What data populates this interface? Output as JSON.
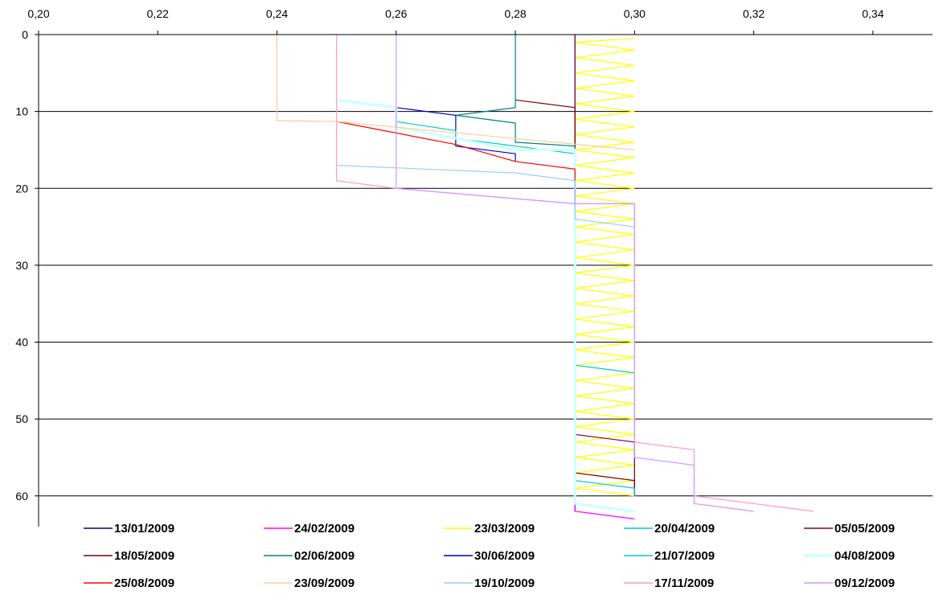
{
  "chart_data": {
    "type": "line",
    "title": "",
    "xlabel": "",
    "ylabel": "",
    "xlim": [
      0.2,
      0.35
    ],
    "ylim": [
      0,
      64
    ],
    "x_axis_position": "top",
    "y_axis_inverted": true,
    "x_ticks": [
      "0,20",
      "0,22",
      "0,24",
      "0,26",
      "0,28",
      "0,30",
      "0,32",
      "0,34"
    ],
    "x_tick_values": [
      0.2,
      0.22,
      0.24,
      0.26,
      0.28,
      0.3,
      0.32,
      0.34
    ],
    "y_ticks": [
      "0",
      "10",
      "20",
      "30",
      "40",
      "50",
      "60"
    ],
    "y_tick_values": [
      0,
      10,
      20,
      30,
      40,
      50,
      60
    ],
    "grid": "horizontal",
    "legend_position": "bottom",
    "series": [
      {
        "name": "13/01/2009",
        "color": "#000080",
        "points": [
          [
            0.29,
            0
          ],
          [
            0.29,
            62
          ]
        ]
      },
      {
        "name": "24/02/2009",
        "color": "#ff00ff",
        "points": [
          [
            0.29,
            0
          ],
          [
            0.29,
            62
          ],
          [
            0.3,
            63
          ]
        ]
      },
      {
        "name": "23/03/2009",
        "color": "#ffff00",
        "points": [
          [
            0.3,
            0.5
          ],
          [
            0.29,
            1
          ],
          [
            0.3,
            2
          ],
          [
            0.29,
            3
          ],
          [
            0.3,
            4
          ],
          [
            0.29,
            5
          ],
          [
            0.3,
            6
          ],
          [
            0.29,
            7
          ],
          [
            0.3,
            8
          ],
          [
            0.29,
            9
          ],
          [
            0.3,
            10
          ],
          [
            0.29,
            11
          ],
          [
            0.3,
            12
          ],
          [
            0.29,
            13
          ],
          [
            0.3,
            14
          ],
          [
            0.29,
            15
          ],
          [
            0.3,
            16
          ],
          [
            0.29,
            17
          ],
          [
            0.3,
            18
          ],
          [
            0.29,
            19
          ],
          [
            0.3,
            20
          ],
          [
            0.29,
            21
          ],
          [
            0.3,
            22
          ],
          [
            0.29,
            23
          ],
          [
            0.3,
            24
          ],
          [
            0.29,
            25
          ],
          [
            0.3,
            26
          ],
          [
            0.29,
            27
          ],
          [
            0.3,
            28
          ],
          [
            0.29,
            29
          ],
          [
            0.3,
            30
          ],
          [
            0.29,
            31
          ],
          [
            0.3,
            32
          ],
          [
            0.29,
            33
          ],
          [
            0.3,
            34
          ],
          [
            0.29,
            35
          ],
          [
            0.3,
            36
          ],
          [
            0.29,
            37
          ],
          [
            0.3,
            38
          ],
          [
            0.29,
            39
          ],
          [
            0.3,
            40
          ],
          [
            0.29,
            41
          ],
          [
            0.3,
            42
          ],
          [
            0.29,
            43
          ],
          [
            0.3,
            44
          ],
          [
            0.29,
            45
          ],
          [
            0.3,
            46
          ],
          [
            0.29,
            47
          ],
          [
            0.3,
            48
          ],
          [
            0.29,
            49
          ],
          [
            0.3,
            50
          ],
          [
            0.29,
            51
          ],
          [
            0.3,
            52
          ],
          [
            0.29,
            53
          ],
          [
            0.3,
            54
          ],
          [
            0.29,
            55
          ],
          [
            0.3,
            56
          ],
          [
            0.29,
            57
          ],
          [
            0.3,
            58
          ],
          [
            0.29,
            59
          ],
          [
            0.3,
            60
          ]
        ]
      },
      {
        "name": "20/04/2009",
        "color": "#00cccc",
        "points": [
          [
            0.29,
            0
          ],
          [
            0.29,
            43
          ],
          [
            0.3,
            44
          ],
          [
            0.3,
            60
          ]
        ]
      },
      {
        "name": "05/05/2009",
        "color": "#800040",
        "points": [
          [
            0.29,
            0
          ],
          [
            0.29,
            52
          ],
          [
            0.3,
            53
          ],
          [
            0.3,
            60
          ]
        ]
      },
      {
        "name": "18/05/2009",
        "color": "#800000",
        "points": [
          [
            0.28,
            8.5
          ],
          [
            0.29,
            9.5
          ],
          [
            0.29,
            57
          ],
          [
            0.3,
            58
          ],
          [
            0.3,
            60
          ]
        ]
      },
      {
        "name": "02/06/2009",
        "color": "#008080",
        "points": [
          [
            0.28,
            0
          ],
          [
            0.28,
            9.5
          ],
          [
            0.27,
            10.5
          ],
          [
            0.28,
            11.5
          ],
          [
            0.28,
            14
          ],
          [
            0.29,
            14.5
          ],
          [
            0.29,
            52
          ]
        ]
      },
      {
        "name": "30/06/2009",
        "color": "#0000cc",
        "points": [
          [
            0.26,
            9.5
          ],
          [
            0.27,
            10.5
          ],
          [
            0.27,
            14.5
          ],
          [
            0.28,
            15.5
          ],
          [
            0.28,
            16.5
          ]
        ]
      },
      {
        "name": "21/07/2009",
        "color": "#00cccc",
        "points": [
          [
            0.26,
            11.3
          ],
          [
            0.27,
            12.5
          ],
          [
            0.27,
            13.5
          ],
          [
            0.28,
            14.5
          ],
          [
            0.29,
            15.5
          ],
          [
            0.29,
            58
          ],
          [
            0.3,
            59
          ],
          [
            0.3,
            60
          ]
        ]
      },
      {
        "name": "04/08/2009",
        "color": "#ccffff",
        "points": [
          [
            0.25,
            8.5
          ],
          [
            0.26,
            9.5
          ],
          [
            0.26,
            12
          ],
          [
            0.28,
            15
          ],
          [
            0.29,
            15
          ],
          [
            0.29,
            61
          ],
          [
            0.3,
            62
          ]
        ]
      },
      {
        "name": "25/08/2009",
        "color": "#ff0000",
        "points": [
          [
            0.25,
            11.3
          ],
          [
            0.27,
            14.3
          ],
          [
            0.28,
            16.5
          ],
          [
            0.29,
            17.5
          ],
          [
            0.29,
            22
          ]
        ]
      },
      {
        "name": "23/09/2009",
        "color": "#ffcc99",
        "points": [
          [
            0.24,
            0
          ],
          [
            0.24,
            11.2
          ],
          [
            0.25,
            11.3
          ],
          [
            0.3,
            15
          ]
        ]
      },
      {
        "name": "19/10/2009",
        "color": "#99ccff",
        "points": [
          [
            0.25,
            17
          ],
          [
            0.28,
            18
          ],
          [
            0.29,
            19
          ],
          [
            0.29,
            24
          ],
          [
            0.3,
            25
          ]
        ]
      },
      {
        "name": "17/11/2009",
        "color": "#ff99cc",
        "points": [
          [
            0.25,
            0
          ],
          [
            0.25,
            19
          ],
          [
            0.26,
            20
          ],
          [
            0.29,
            22
          ],
          [
            0.3,
            22
          ],
          [
            0.3,
            53
          ],
          [
            0.31,
            54
          ],
          [
            0.31,
            60
          ],
          [
            0.33,
            62
          ]
        ]
      },
      {
        "name": "09/12/2009",
        "color": "#cc99ff",
        "points": [
          [
            0.26,
            0
          ],
          [
            0.26,
            20
          ],
          [
            0.29,
            22
          ],
          [
            0.3,
            22
          ],
          [
            0.3,
            55
          ],
          [
            0.31,
            56
          ],
          [
            0.31,
            61
          ],
          [
            0.32,
            62
          ]
        ]
      }
    ]
  }
}
